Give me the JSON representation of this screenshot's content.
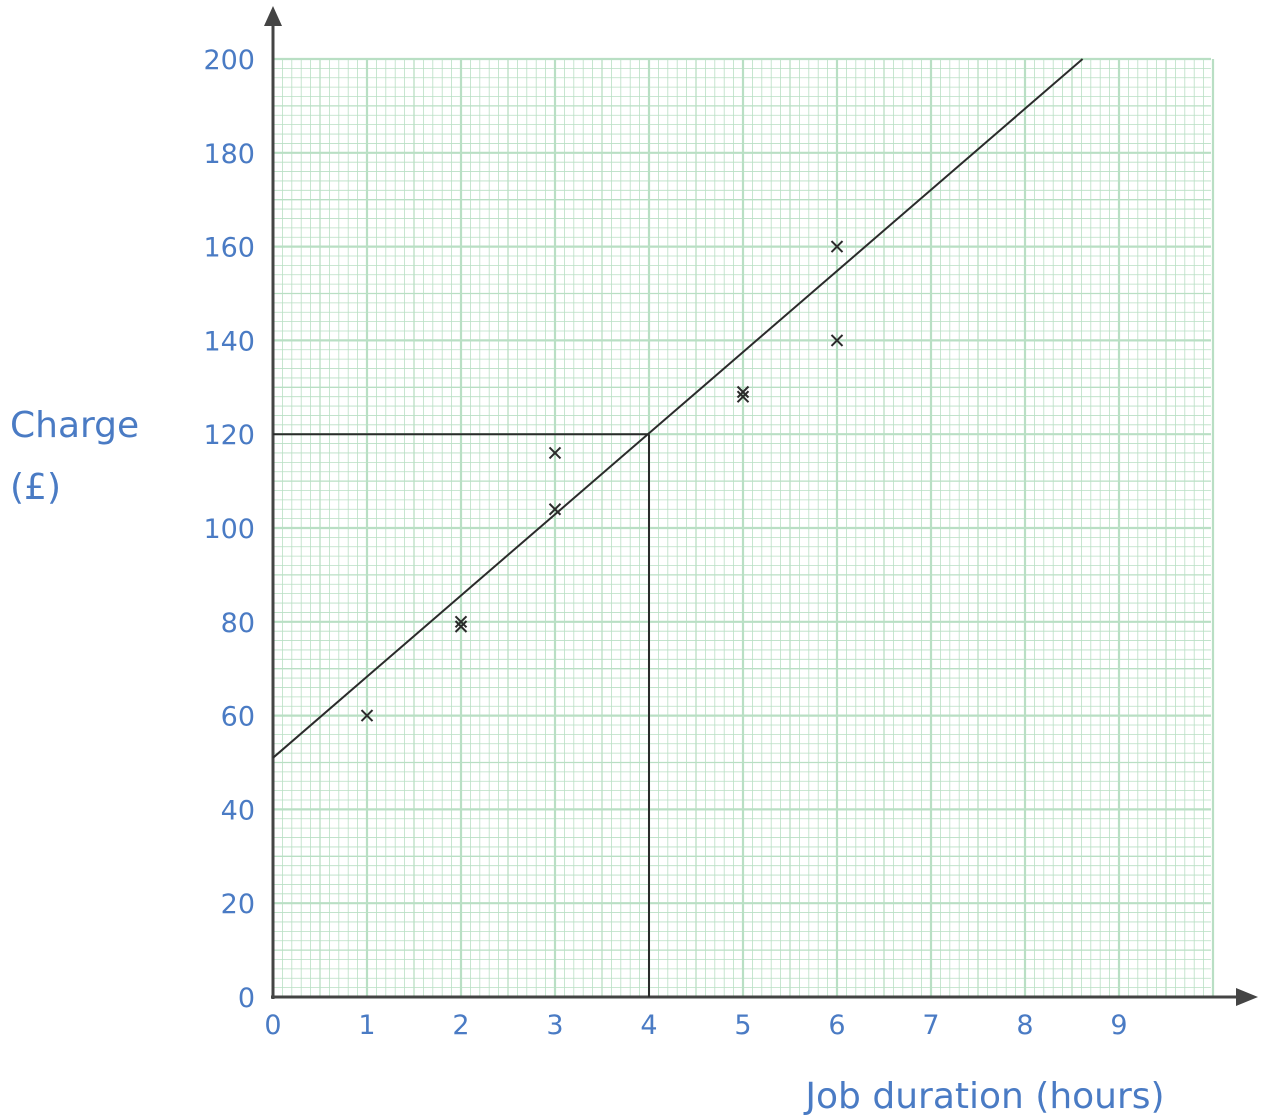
{
  "chart_data": {
    "type": "scatter",
    "xlabel": "Job duration (hours)",
    "ylabel_lines": [
      "Charge",
      "(£)"
    ],
    "xlim": [
      0,
      10
    ],
    "ylim": [
      0,
      200
    ],
    "x_ticks": [
      "0",
      "1",
      "2",
      "3",
      "4",
      "5",
      "6",
      "7",
      "8",
      "9"
    ],
    "y_ticks": [
      "0",
      "20",
      "40",
      "60",
      "80",
      "100",
      "120",
      "140",
      "160",
      "180",
      "200"
    ],
    "grid": true,
    "points": [
      {
        "x": 1,
        "y": 60
      },
      {
        "x": 2,
        "y": 79
      },
      {
        "x": 2,
        "y": 80
      },
      {
        "x": 3,
        "y": 104
      },
      {
        "x": 3,
        "y": 116
      },
      {
        "x": 5,
        "y": 128
      },
      {
        "x": 5,
        "y": 129
      },
      {
        "x": 6,
        "y": 140
      },
      {
        "x": 6,
        "y": 160
      }
    ],
    "best_fit_line": {
      "intercept": 51,
      "slope": 17.3
    },
    "reading": {
      "x": 4,
      "y": 120
    },
    "colors": {
      "text": "#4a7bc4",
      "grid": "#b9dfc4",
      "ink": "#2b2b2b"
    }
  }
}
